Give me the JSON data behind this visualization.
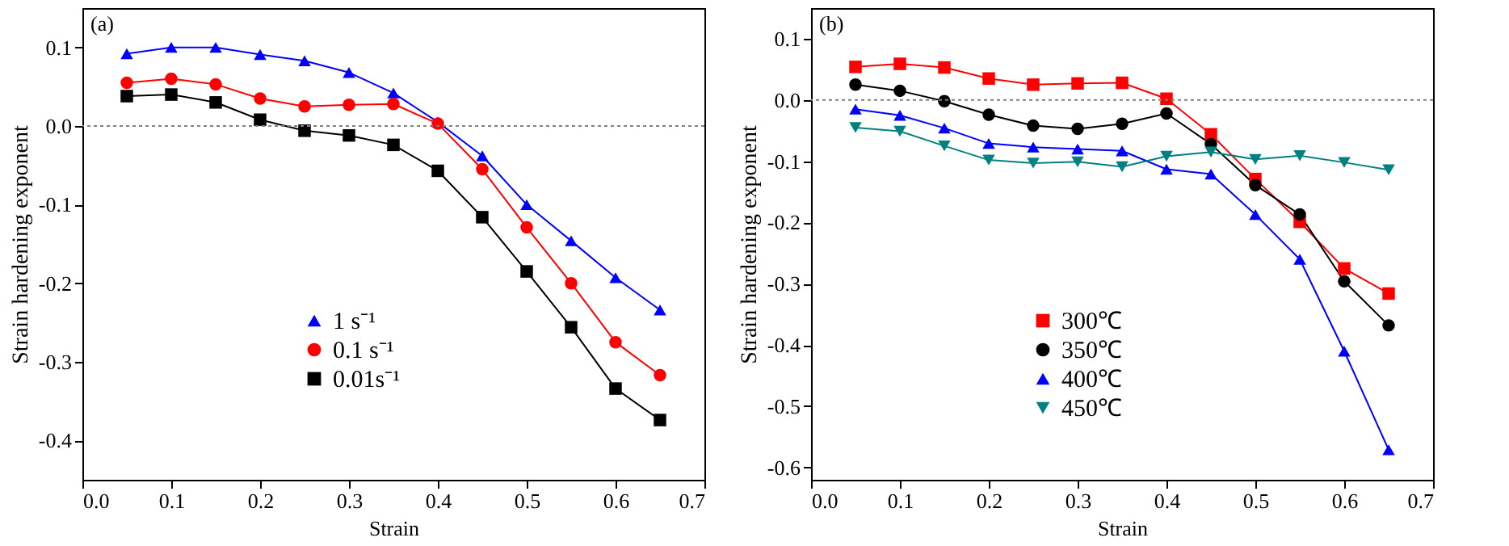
{
  "chart_data": [
    {
      "type": "line",
      "xlabel": "Strain",
      "ylabel": "Strain hardening exponent",
      "annotations": [
        "(a)"
      ],
      "x": [
        0.05,
        0.1,
        0.15,
        0.2,
        0.25,
        0.3,
        0.35,
        0.4,
        0.45,
        0.5,
        0.55,
        0.6,
        0.65
      ],
      "xlim": [
        0,
        0.7
      ],
      "xticks": [
        {
          "value": 0,
          "label": "0.0"
        },
        0.1,
        0.2,
        0.3,
        0.4,
        0.5,
        0.6,
        0.7
      ],
      "ylim": [
        -0.45,
        0.15
      ],
      "yticks": [
        -0.4,
        -0.3,
        -0.2,
        -0.1,
        {
          "value": 0,
          "label": "0.0"
        },
        0.1
      ],
      "grid": false,
      "legend": "bottom left",
      "line_style": "solid",
      "ref_lines": [
        {
          "axis": "y",
          "value": 0,
          "line_style": "dotted",
          "color": "#808080"
        }
      ],
      "series": [
        {
          "name": "1 s⁻¹",
          "color": "#0000ff",
          "marker": "triangle",
          "values": [
            0.092,
            0.1,
            0.1,
            0.091,
            0.083,
            0.068,
            0.042,
            0.005,
            -0.038,
            -0.1,
            -0.146,
            -0.193,
            -0.234
          ]
        },
        {
          "name": "0.1 s⁻¹",
          "color": "#ff0000",
          "marker": "circle",
          "values": [
            0.055,
            0.06,
            0.053,
            0.035,
            0.025,
            0.027,
            0.028,
            0.003,
            -0.055,
            -0.129,
            -0.2,
            -0.275,
            -0.317
          ]
        },
        {
          "name": "0.01s⁻¹",
          "color": "#000000",
          "marker": "square",
          "values": [
            0.038,
            0.04,
            0.03,
            0.008,
            -0.006,
            -0.012,
            -0.024,
            -0.057,
            -0.116,
            -0.185,
            -0.256,
            -0.334,
            -0.374
          ]
        }
      ]
    },
    {
      "type": "line",
      "xlabel": "Strain",
      "ylabel": "Strain hardening exponent",
      "annotations": [
        "(b)"
      ],
      "x": [
        0.05,
        0.1,
        0.15,
        0.2,
        0.25,
        0.3,
        0.35,
        0.4,
        0.45,
        0.5,
        0.55,
        0.6,
        0.65
      ],
      "xlim": [
        0,
        0.7
      ],
      "xticks": [
        {
          "value": 0,
          "label": "0.0"
        },
        0.1,
        0.2,
        0.3,
        0.4,
        0.5,
        0.6,
        0.7
      ],
      "ylim": [
        -0.62,
        0.15
      ],
      "yticks": [
        -0.6,
        -0.5,
        -0.4,
        -0.3,
        -0.2,
        -0.1,
        {
          "value": 0,
          "label": "0.0"
        },
        0.1
      ],
      "grid": false,
      "legend": "bottom left",
      "line_style": "solid",
      "ref_lines": [
        {
          "axis": "y",
          "value": 0,
          "line_style": "dotted",
          "color": "#808080"
        }
      ],
      "series": [
        {
          "name": "300℃",
          "color": "#ff0000",
          "marker": "square",
          "values": [
            0.054,
            0.059,
            0.053,
            0.035,
            0.025,
            0.027,
            0.028,
            0.002,
            -0.056,
            -0.129,
            -0.199,
            -0.275,
            -0.316
          ]
        },
        {
          "name": "350℃",
          "color": "#000000",
          "marker": "circle",
          "values": [
            0.025,
            0.015,
            -0.002,
            -0.024,
            -0.042,
            -0.047,
            -0.039,
            -0.022,
            -0.072,
            -0.139,
            -0.187,
            -0.296,
            -0.368
          ]
        },
        {
          "name": "400℃",
          "color": "#0000ff",
          "marker": "triangle",
          "values": [
            -0.015,
            -0.025,
            -0.046,
            -0.071,
            -0.077,
            -0.08,
            -0.083,
            -0.113,
            -0.121,
            -0.187,
            -0.26,
            -0.41,
            -0.571
          ]
        },
        {
          "name": "450℃",
          "color": "#008080",
          "marker": "triangle-down",
          "values": [
            -0.045,
            -0.051,
            -0.075,
            -0.098,
            -0.103,
            -0.101,
            -0.109,
            -0.092,
            -0.085,
            -0.097,
            -0.091,
            -0.102,
            -0.114
          ]
        }
      ]
    }
  ]
}
